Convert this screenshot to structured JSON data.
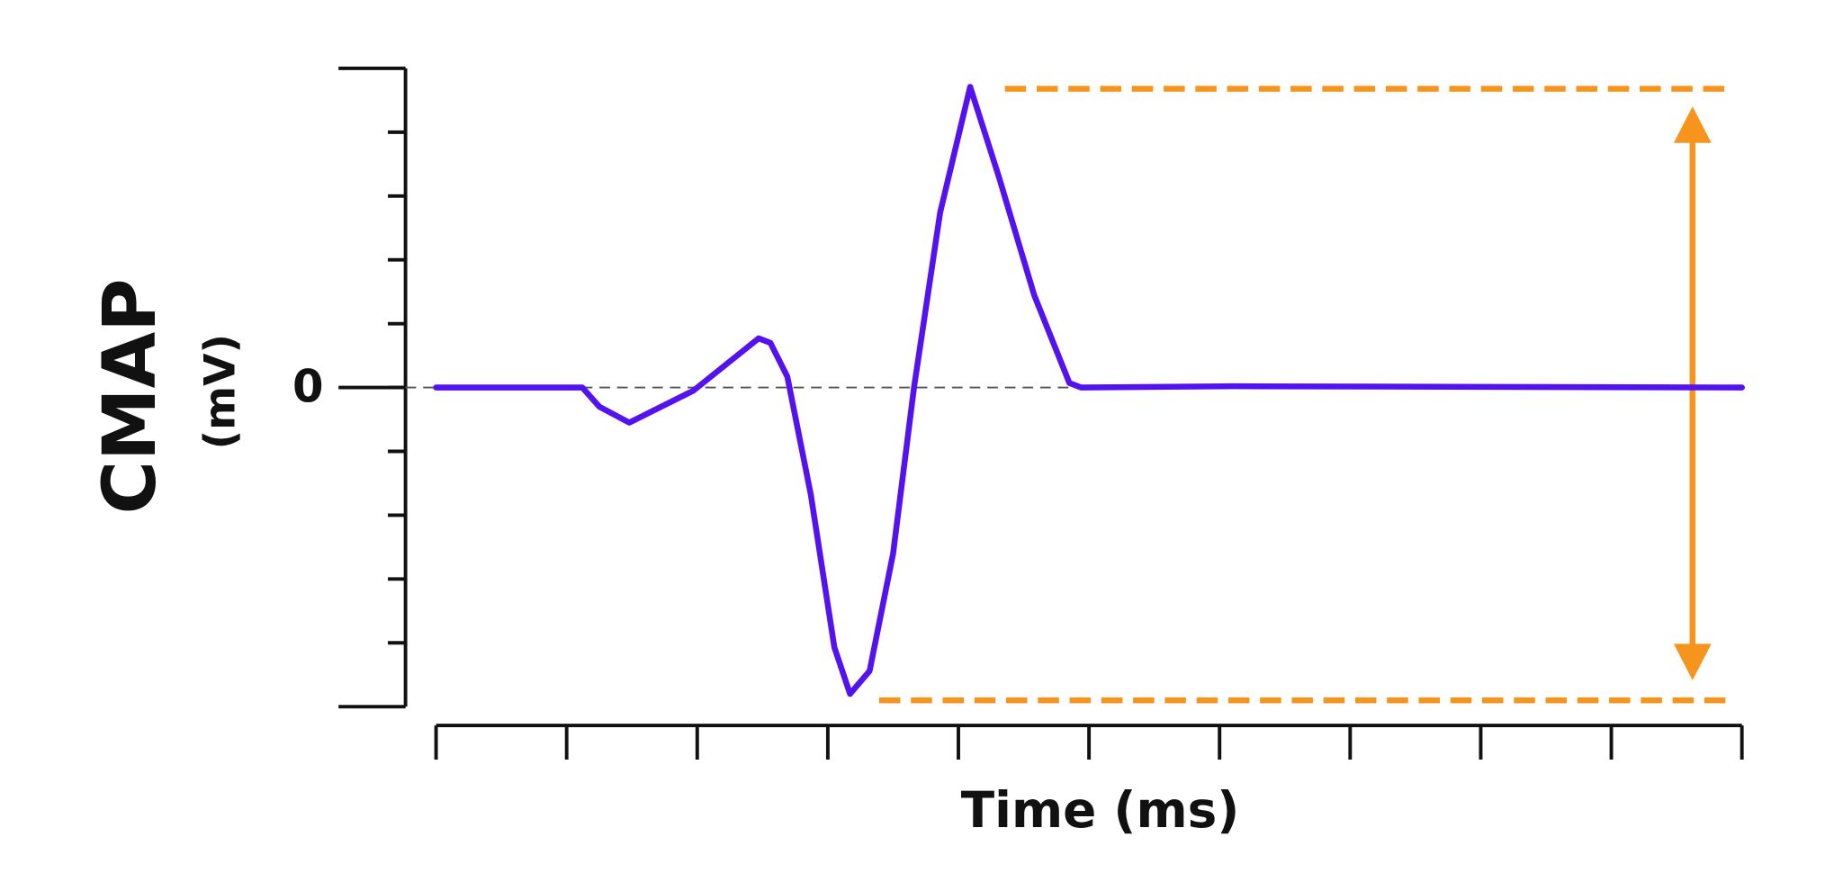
{
  "chart_data": {
    "type": "line",
    "x_label": "Time (ms)",
    "y_label": "CMAP",
    "y_unit": "(mV)",
    "x": [
      0,
      1.12,
      1.25,
      1.48,
      1.97,
      2.47,
      2.56,
      2.69,
      2.87,
      3.05,
      3.17,
      3.32,
      3.5,
      3.66,
      3.86,
      4.09,
      4.31,
      4.58,
      4.85,
      4.94,
      6.11,
      10
    ],
    "series": [
      {
        "color": "#5412f0",
        "values": [
          0,
          0,
          -0.3,
          -0.55,
          -0.05,
          0.77,
          0.7,
          0.17,
          -1.68,
          -4.07,
          -4.8,
          -4.44,
          -2.6,
          0,
          2.74,
          4.71,
          3.3,
          1.45,
          0.07,
          0,
          0.02,
          0
        ]
      }
    ],
    "xlim": [
      0,
      10
    ],
    "ylim": [
      -5,
      5
    ],
    "yticks": [
      0
    ],
    "minor_xticks": [
      0,
      1,
      2,
      3,
      4,
      5,
      6,
      7,
      8,
      9,
      10
    ],
    "minor_yticks": [
      -5,
      -4,
      -3,
      -2,
      -1,
      0,
      1,
      2,
      3,
      4,
      5
    ],
    "zero_line": true,
    "amplitude": {
      "max": 4.68,
      "min": -4.9,
      "color": "#f7941d"
    }
  }
}
